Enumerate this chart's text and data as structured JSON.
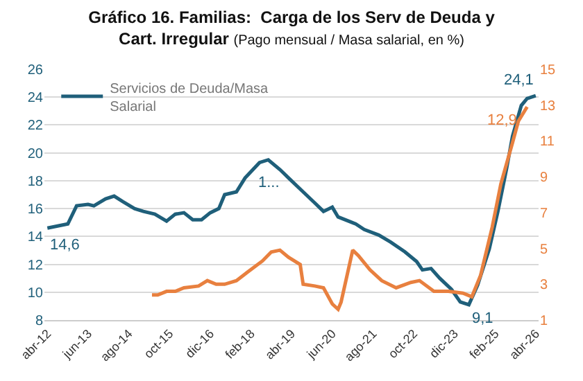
{
  "chart_data": {
    "type": "line",
    "title": "Gráfico 16. Familias:  Carga de los Serv de Deuda y Cart. Irregular",
    "subtitle": "(Pago mensual / Masa salarial, en %)",
    "series": [
      {
        "name": "Servicios de Deuda/Masa Salarial",
        "color": "#1f5f7a",
        "axis": "y",
        "x": [
          "2012-04",
          "2012-11",
          "2013-02",
          "2013-06",
          "2013-08",
          "2013-12",
          "2014-03",
          "2014-06",
          "2014-10",
          "2015-01",
          "2015-05",
          "2015-09",
          "2015-12",
          "2016-03",
          "2016-06",
          "2016-09",
          "2016-12",
          "2017-03",
          "2017-05",
          "2017-09",
          "2017-12",
          "2018-05",
          "2018-08",
          "2018-12",
          "2019-03",
          "2019-08",
          "2019-12",
          "2020-03",
          "2020-06",
          "2020-08",
          "2021-02",
          "2021-05",
          "2021-10",
          "2022-02",
          "2022-07",
          "2022-11",
          "2023-01",
          "2023-04",
          "2023-07",
          "2023-11",
          "2024-02",
          "2024-05",
          "2024-08",
          "2024-12",
          "2025-03",
          "2025-06",
          "2025-08",
          "2025-11",
          "2026-01",
          "2026-04"
        ],
        "values": [
          14.6,
          14.9,
          16.2,
          16.3,
          16.2,
          16.7,
          16.9,
          16.5,
          16.0,
          15.8,
          15.6,
          15.1,
          15.6,
          15.7,
          15.2,
          15.2,
          15.7,
          16.0,
          17.0,
          17.2,
          18.2,
          19.3,
          19.5,
          18.8,
          18.2,
          17.2,
          16.4,
          15.8,
          16.1,
          15.4,
          14.9,
          14.5,
          14.1,
          13.6,
          12.9,
          12.2,
          11.6,
          11.7,
          11.0,
          10.2,
          9.3,
          9.1,
          10.5,
          13.1,
          15.8,
          18.9,
          21.2,
          23.4,
          23.9,
          24.1
        ],
        "value_labels": [
          "14,6",
          null,
          null,
          null,
          null,
          null,
          null,
          null,
          null,
          null,
          null,
          null,
          null,
          null,
          null,
          null,
          null,
          null,
          null,
          null,
          null,
          null,
          "1...",
          null,
          null,
          null,
          null,
          null,
          null,
          null,
          null,
          null,
          null,
          null,
          null,
          null,
          null,
          null,
          null,
          null,
          null,
          "9,1",
          null,
          null,
          null,
          null,
          null,
          null,
          null,
          "24,1"
        ]
      },
      {
        "color": "#e8803f",
        "axis": "y2",
        "x": [
          "2015-04",
          "2015-06",
          "2015-09",
          "2015-12",
          "2016-03",
          "2016-08",
          "2016-11",
          "2017-02",
          "2017-05",
          "2017-09",
          "2018-01",
          "2018-06",
          "2018-09",
          "2018-12",
          "2019-03",
          "2019-07",
          "2019-08",
          "2019-12",
          "2020-03",
          "2020-06",
          "2020-08",
          "2020-09",
          "2021-01",
          "2021-03",
          "2021-07",
          "2021-11",
          "2022-04",
          "2022-09",
          "2022-12",
          "2023-05",
          "2023-10",
          "2024-03",
          "2024-06",
          "2024-09",
          "2025-01",
          "2025-04",
          "2025-08",
          "2025-10",
          "2026-01"
        ],
        "values": [
          2.4,
          2.4,
          2.6,
          2.6,
          2.8,
          2.9,
          3.2,
          3.0,
          3.0,
          3.2,
          3.7,
          4.3,
          4.8,
          4.9,
          4.5,
          4.1,
          3.0,
          2.9,
          2.8,
          1.9,
          1.6,
          2.0,
          4.9,
          4.6,
          3.8,
          3.2,
          2.8,
          3.1,
          3.2,
          2.6,
          2.6,
          2.5,
          2.3,
          3.5,
          6.2,
          8.6,
          10.9,
          12.1,
          12.9
        ],
        "value_labels": [
          null,
          null,
          null,
          null,
          null,
          null,
          null,
          null,
          null,
          null,
          null,
          null,
          null,
          null,
          null,
          null,
          null,
          null,
          null,
          null,
          null,
          null,
          null,
          null,
          null,
          null,
          null,
          null,
          null,
          null,
          null,
          null,
          null,
          null,
          null,
          null,
          null,
          null,
          "12,9"
        ]
      }
    ],
    "xlim": [
      "2012-03",
      "2026-05"
    ],
    "xticks": [
      {
        "value": "2012-04",
        "label": "abr-12"
      },
      {
        "value": "2013-06",
        "label": "jun-13"
      },
      {
        "value": "2014-08",
        "label": "ago-14"
      },
      {
        "value": "2015-10",
        "label": "oct-15"
      },
      {
        "value": "2016-12",
        "label": "dic-16"
      },
      {
        "value": "2018-02",
        "label": "feb-18"
      },
      {
        "value": "2019-04",
        "label": "abr-19"
      },
      {
        "value": "2020-06",
        "label": "jun-20"
      },
      {
        "value": "2021-08",
        "label": "ago-21"
      },
      {
        "value": "2022-10",
        "label": "oct-22"
      },
      {
        "value": "2023-12",
        "label": "dic-23"
      },
      {
        "value": "2025-02",
        "label": "feb-25"
      },
      {
        "value": "2026-04",
        "label": "abr-26"
      }
    ],
    "ylim": [
      8,
      26
    ],
    "yticks": [
      8,
      10,
      12,
      14,
      16,
      18,
      20,
      22,
      24,
      26
    ],
    "y2lim": [
      1,
      15
    ],
    "y2ticks": [
      1,
      3,
      5,
      7,
      9,
      11,
      13,
      15
    ],
    "grid": "y",
    "legend": "top left",
    "marker": "none",
    "line_style": "solid"
  }
}
